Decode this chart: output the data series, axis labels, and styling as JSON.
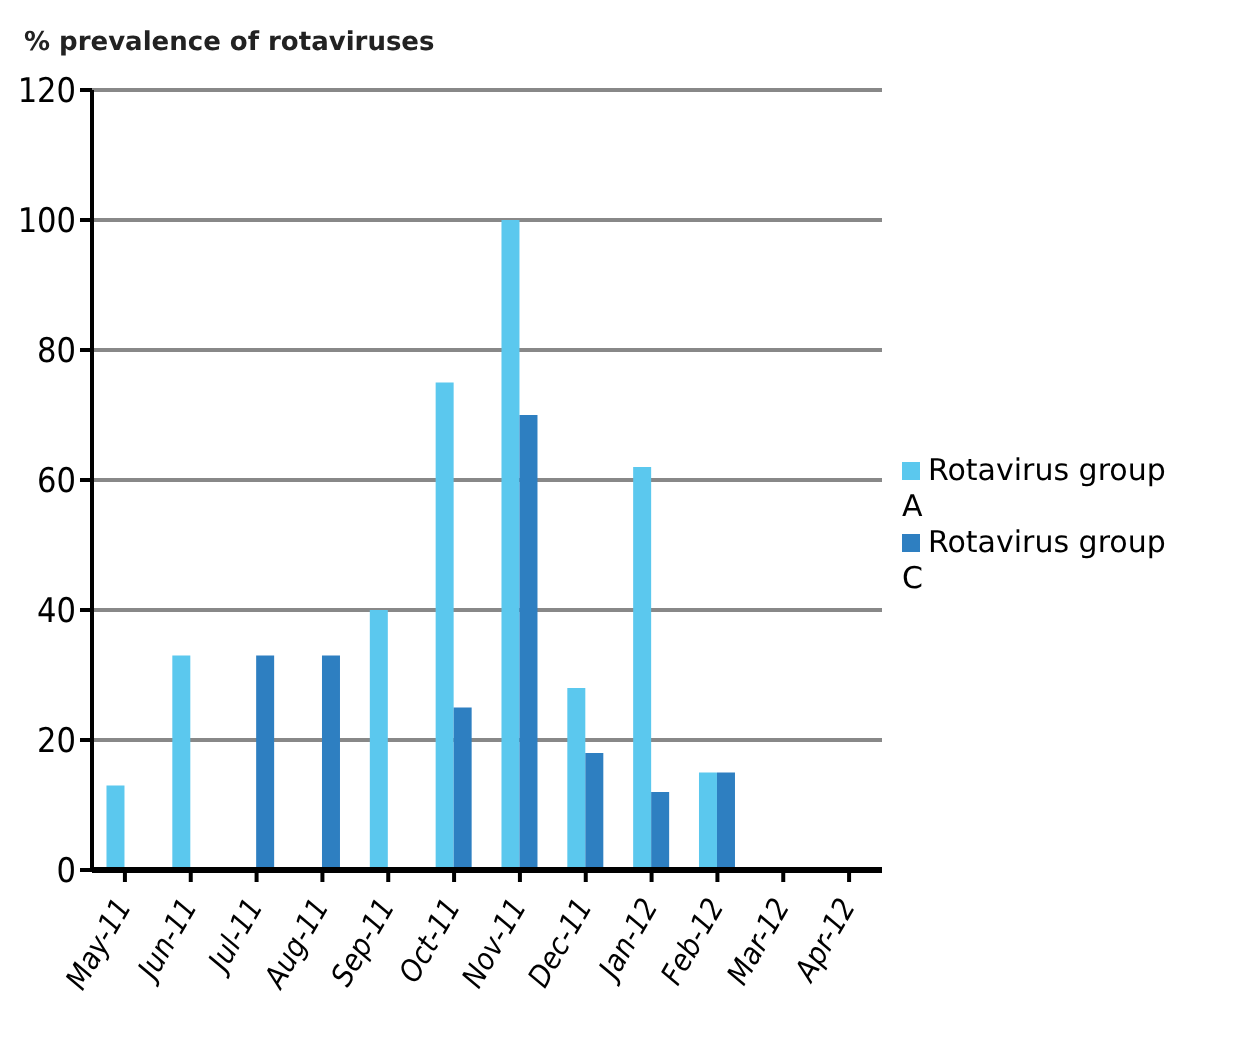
{
  "chart_data": {
    "type": "bar",
    "ylabel": "% prevalence of rotaviruses",
    "categories": [
      "May-11",
      "Jun-11",
      "Jul-11",
      "Aug-11",
      "Sep-11",
      "Oct-11",
      "Nov-11",
      "Dec-11",
      "Jan-12",
      "Feb-12",
      "Mar-12",
      "Apr-12"
    ],
    "series": [
      {
        "name": "Rotavirus group A",
        "color": "#5bc8ee",
        "values": [
          13,
          33,
          0,
          0,
          40,
          75,
          100,
          28,
          62,
          15,
          0,
          0
        ]
      },
      {
        "name": "Rotavirus group C",
        "color": "#2e7fc1",
        "values": [
          0,
          0,
          33,
          33,
          0,
          25,
          70,
          18,
          12,
          15,
          0,
          0
        ]
      }
    ],
    "ylim": [
      0,
      120
    ],
    "yticks": [
      0,
      20,
      40,
      60,
      80,
      100,
      120
    ],
    "grid": "y",
    "legend": "right"
  }
}
